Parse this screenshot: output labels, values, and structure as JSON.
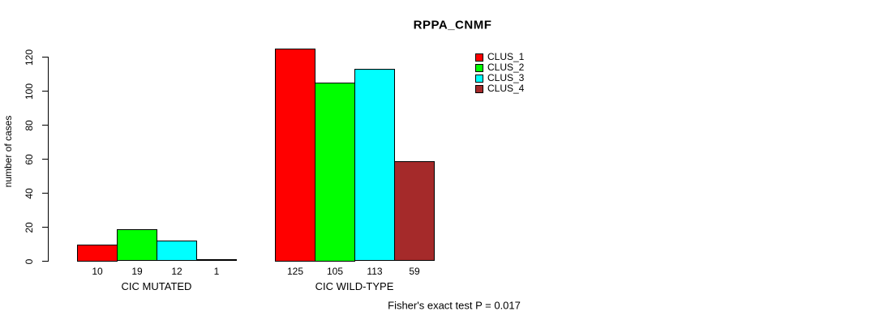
{
  "chart_data": {
    "type": "bar",
    "title": "RPPA_CNMF",
    "ylabel": "number of cases",
    "xlabel": "",
    "ylim": [
      0,
      130
    ],
    "yticks": [
      0,
      20,
      40,
      60,
      80,
      100,
      120
    ],
    "categories": [
      "CIC MUTATED",
      "CIC WILD-TYPE"
    ],
    "series": [
      {
        "name": "CLUS_1",
        "color": "#ff0000",
        "values": [
          10,
          125
        ]
      },
      {
        "name": "CLUS_2",
        "color": "#00ff00",
        "values": [
          19,
          105
        ]
      },
      {
        "name": "CLUS_3",
        "color": "#00ffff",
        "values": [
          12,
          113
        ]
      },
      {
        "name": "CLUS_4",
        "color": "#a52a2a",
        "values": [
          1,
          59
        ]
      }
    ],
    "bar_value_labels": [
      [
        10,
        19,
        12,
        1
      ],
      [
        125,
        105,
        113,
        59
      ]
    ],
    "legend_position": "top-right",
    "grid": false,
    "annotation": "Fisher's exact test P = 0.017"
  }
}
